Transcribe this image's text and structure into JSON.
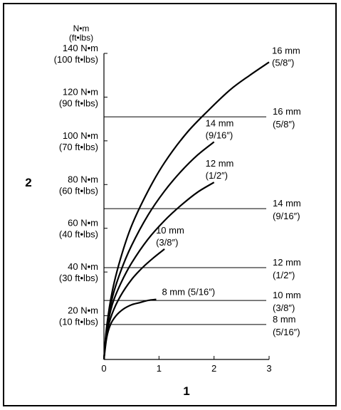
{
  "chart_data": {
    "type": "line",
    "title": "",
    "xlabel": "1",
    "ylabel": "2",
    "y_unit_label": {
      "line1": "N•m",
      "line2": "(ft•lbs)"
    },
    "xlim": [
      0,
      3
    ],
    "ylim": [
      0,
      140
    ],
    "x_ticks": [
      "0",
      "1",
      "2",
      "3"
    ],
    "y_ticks": [
      {
        "value": 20,
        "nm": "20  N•m",
        "ftlbs": "(10 ft•lbs)"
      },
      {
        "value": 40,
        "nm": "40  N•m",
        "ftlbs": "(30 ft•lbs)"
      },
      {
        "value": 60,
        "nm": "60  N•m",
        "ftlbs": "(40 ft•lbs)"
      },
      {
        "value": 80,
        "nm": "80  N•m",
        "ftlbs": "(60 ft•lbs)"
      },
      {
        "value": 100,
        "nm": "100  N•m",
        "ftlbs": "(70 ft•lbs)"
      },
      {
        "value": 120,
        "nm": "120  N•m",
        "ftlbs": "(90 ft•lbs)"
      },
      {
        "value": 140,
        "nm": "140 N•m",
        "ftlbs": "(100 ft•lbs)"
      }
    ],
    "series": [
      {
        "name": "8 mm (5/16″)",
        "label_lines": [
          "8 mm (5/16″)"
        ],
        "x": [
          0,
          0.05,
          0.12,
          0.22,
          0.35,
          0.5,
          0.65,
          0.8,
          0.95
        ],
        "y": [
          0,
          10,
          16,
          20,
          23,
          25,
          26,
          27,
          27.5
        ]
      },
      {
        "name": "10 mm (3/8″)",
        "label_lines": [
          "10 mm",
          "(3/8″)"
        ],
        "x": [
          0,
          0.05,
          0.15,
          0.3,
          0.5,
          0.7,
          0.9,
          1.1
        ],
        "y": [
          0,
          12,
          21,
          29,
          36.5,
          42,
          46.5,
          50.5
        ]
      },
      {
        "name": "12 mm (1/2″)",
        "label_lines": [
          "12 mm",
          "(1/2″)"
        ],
        "x": [
          0,
          0.05,
          0.15,
          0.3,
          0.5,
          0.8,
          1.1,
          1.4,
          1.7,
          2.0
        ],
        "y": [
          0,
          13,
          25,
          34.5,
          44,
          55,
          63.5,
          70.5,
          76.5,
          81
        ]
      },
      {
        "name": "14 mm (9/16″)",
        "label_lines": [
          "14 mm",
          "(9/16″)"
        ],
        "x": [
          0,
          0.05,
          0.15,
          0.3,
          0.5,
          0.8,
          1.1,
          1.4,
          1.7,
          2.0
        ],
        "y": [
          0,
          14,
          28,
          40,
          52,
          66,
          77,
          86,
          93.5,
          99.5
        ]
      },
      {
        "name": "16 mm (5/8″)",
        "label_lines": [
          "16 mm",
          "(5/8″)"
        ],
        "x": [
          0,
          0.05,
          0.15,
          0.3,
          0.5,
          0.8,
          1.1,
          1.5,
          1.9,
          2.3,
          2.65,
          3.0
        ],
        "y": [
          0,
          15,
          31,
          46,
          61,
          77,
          90,
          103.5,
          114,
          123.5,
          130,
          136
        ]
      }
    ],
    "thresholds": [
      {
        "name": "8 mm (5/16″)",
        "label_lines": [
          "8 mm",
          "(5/16″)"
        ],
        "y": 16
      },
      {
        "name": "10 mm (3/8″)",
        "label_lines": [
          "10 mm",
          "(3/8″)"
        ],
        "y": 27
      },
      {
        "name": "12 mm (1/2″)",
        "label_lines": [
          "12 mm",
          "(1/2″)"
        ],
        "y": 42
      },
      {
        "name": "14 mm (9/16″)",
        "label_lines": [
          "14 mm",
          "(9/16″)"
        ],
        "y": 69
      },
      {
        "name": "16 mm (5/8″)",
        "label_lines": [
          "16 mm",
          "(5/8″)"
        ],
        "y": 111
      }
    ],
    "grid": false,
    "legend": "none",
    "line_color": "#000000"
  }
}
